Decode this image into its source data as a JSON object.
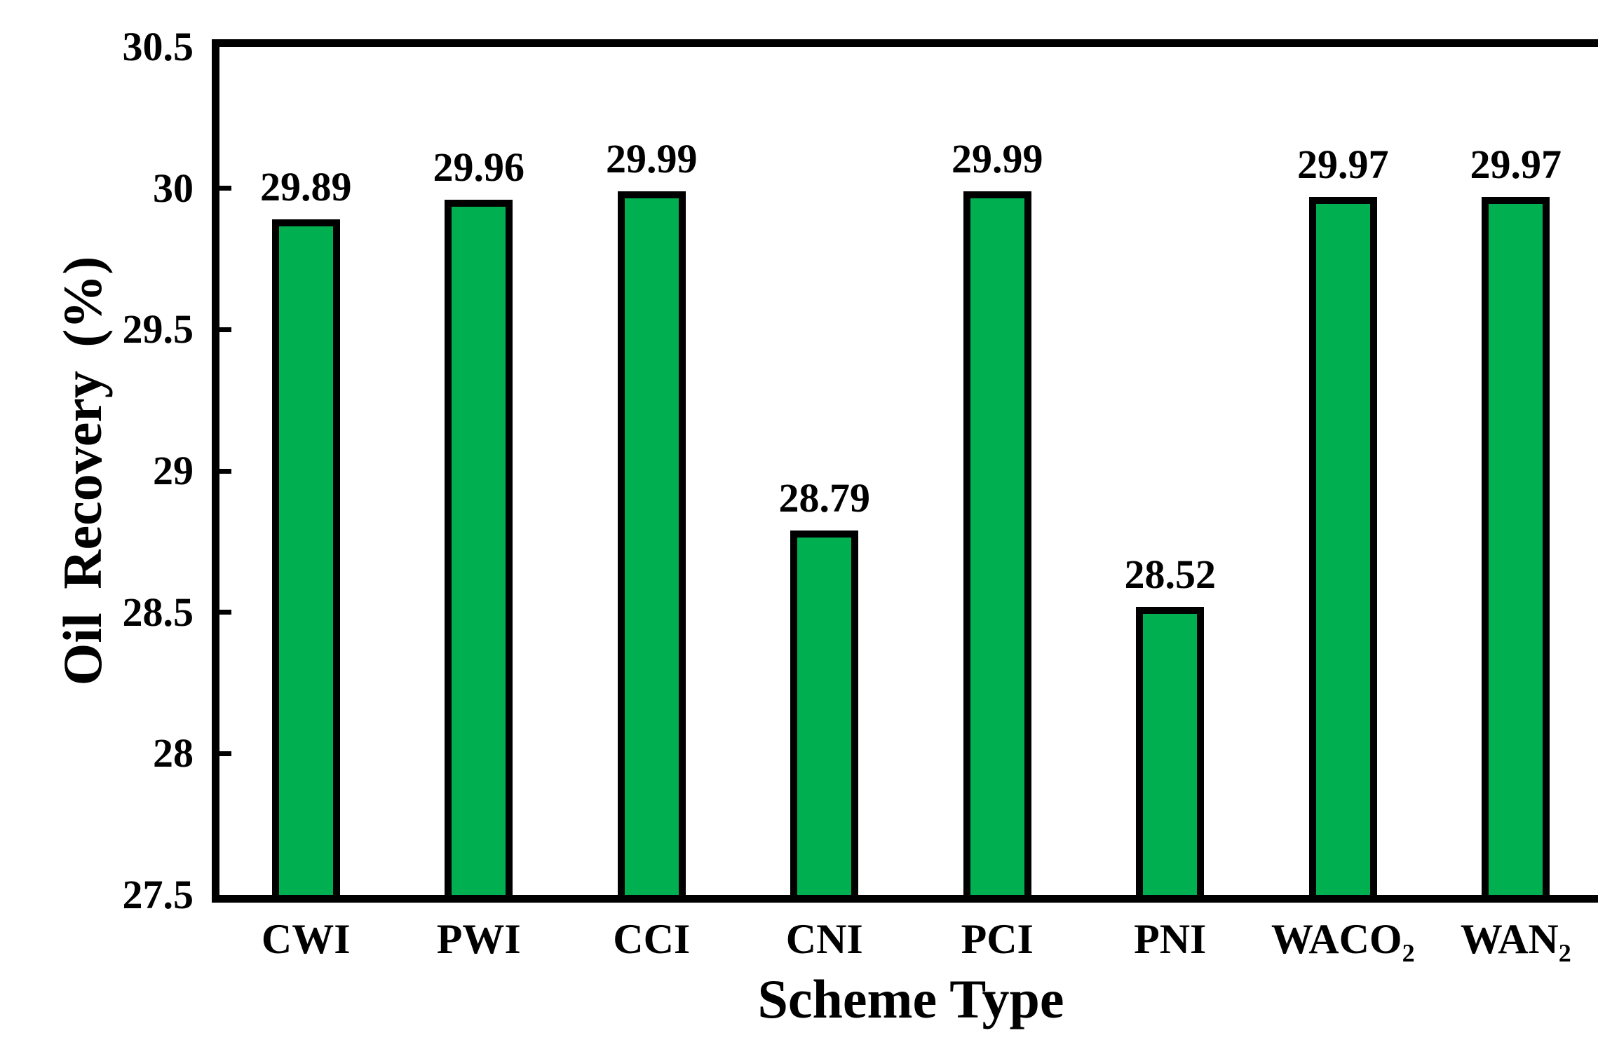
{
  "chart_data": {
    "type": "bar",
    "title": "",
    "xlabel": "Scheme Type",
    "ylabel": "Oil Recovery (%)",
    "categories": [
      "CWI",
      "PWI",
      "CCI",
      "CNI",
      "PCI",
      "PNI",
      "WACO₂",
      "WAN₂"
    ],
    "values": [
      29.89,
      29.96,
      29.99,
      28.79,
      29.99,
      28.52,
      29.97,
      29.97
    ],
    "value_labels": [
      "29.89",
      "29.96",
      "29.99",
      "28.79",
      "29.99",
      "28.52",
      "29.97",
      "29.97"
    ],
    "ylim": [
      27.5,
      30.5
    ],
    "ytick_step": 0.5,
    "yticks": [
      {
        "value": 30.5,
        "label": "30.5"
      },
      {
        "value": 30,
        "label": "30"
      },
      {
        "value": 29.5,
        "label": "29.5"
      },
      {
        "value": 29,
        "label": "29"
      },
      {
        "value": 28.5,
        "label": "28.5"
      },
      {
        "value": 28,
        "label": "28"
      },
      {
        "value": 27.5,
        "label": "27.5"
      }
    ],
    "grid": "off",
    "legend": "none",
    "colors": {
      "bar_fill": "#00B050",
      "bar_border": "#000000",
      "axis": "#000000",
      "text": "#000000",
      "background": "#ffffff"
    }
  }
}
